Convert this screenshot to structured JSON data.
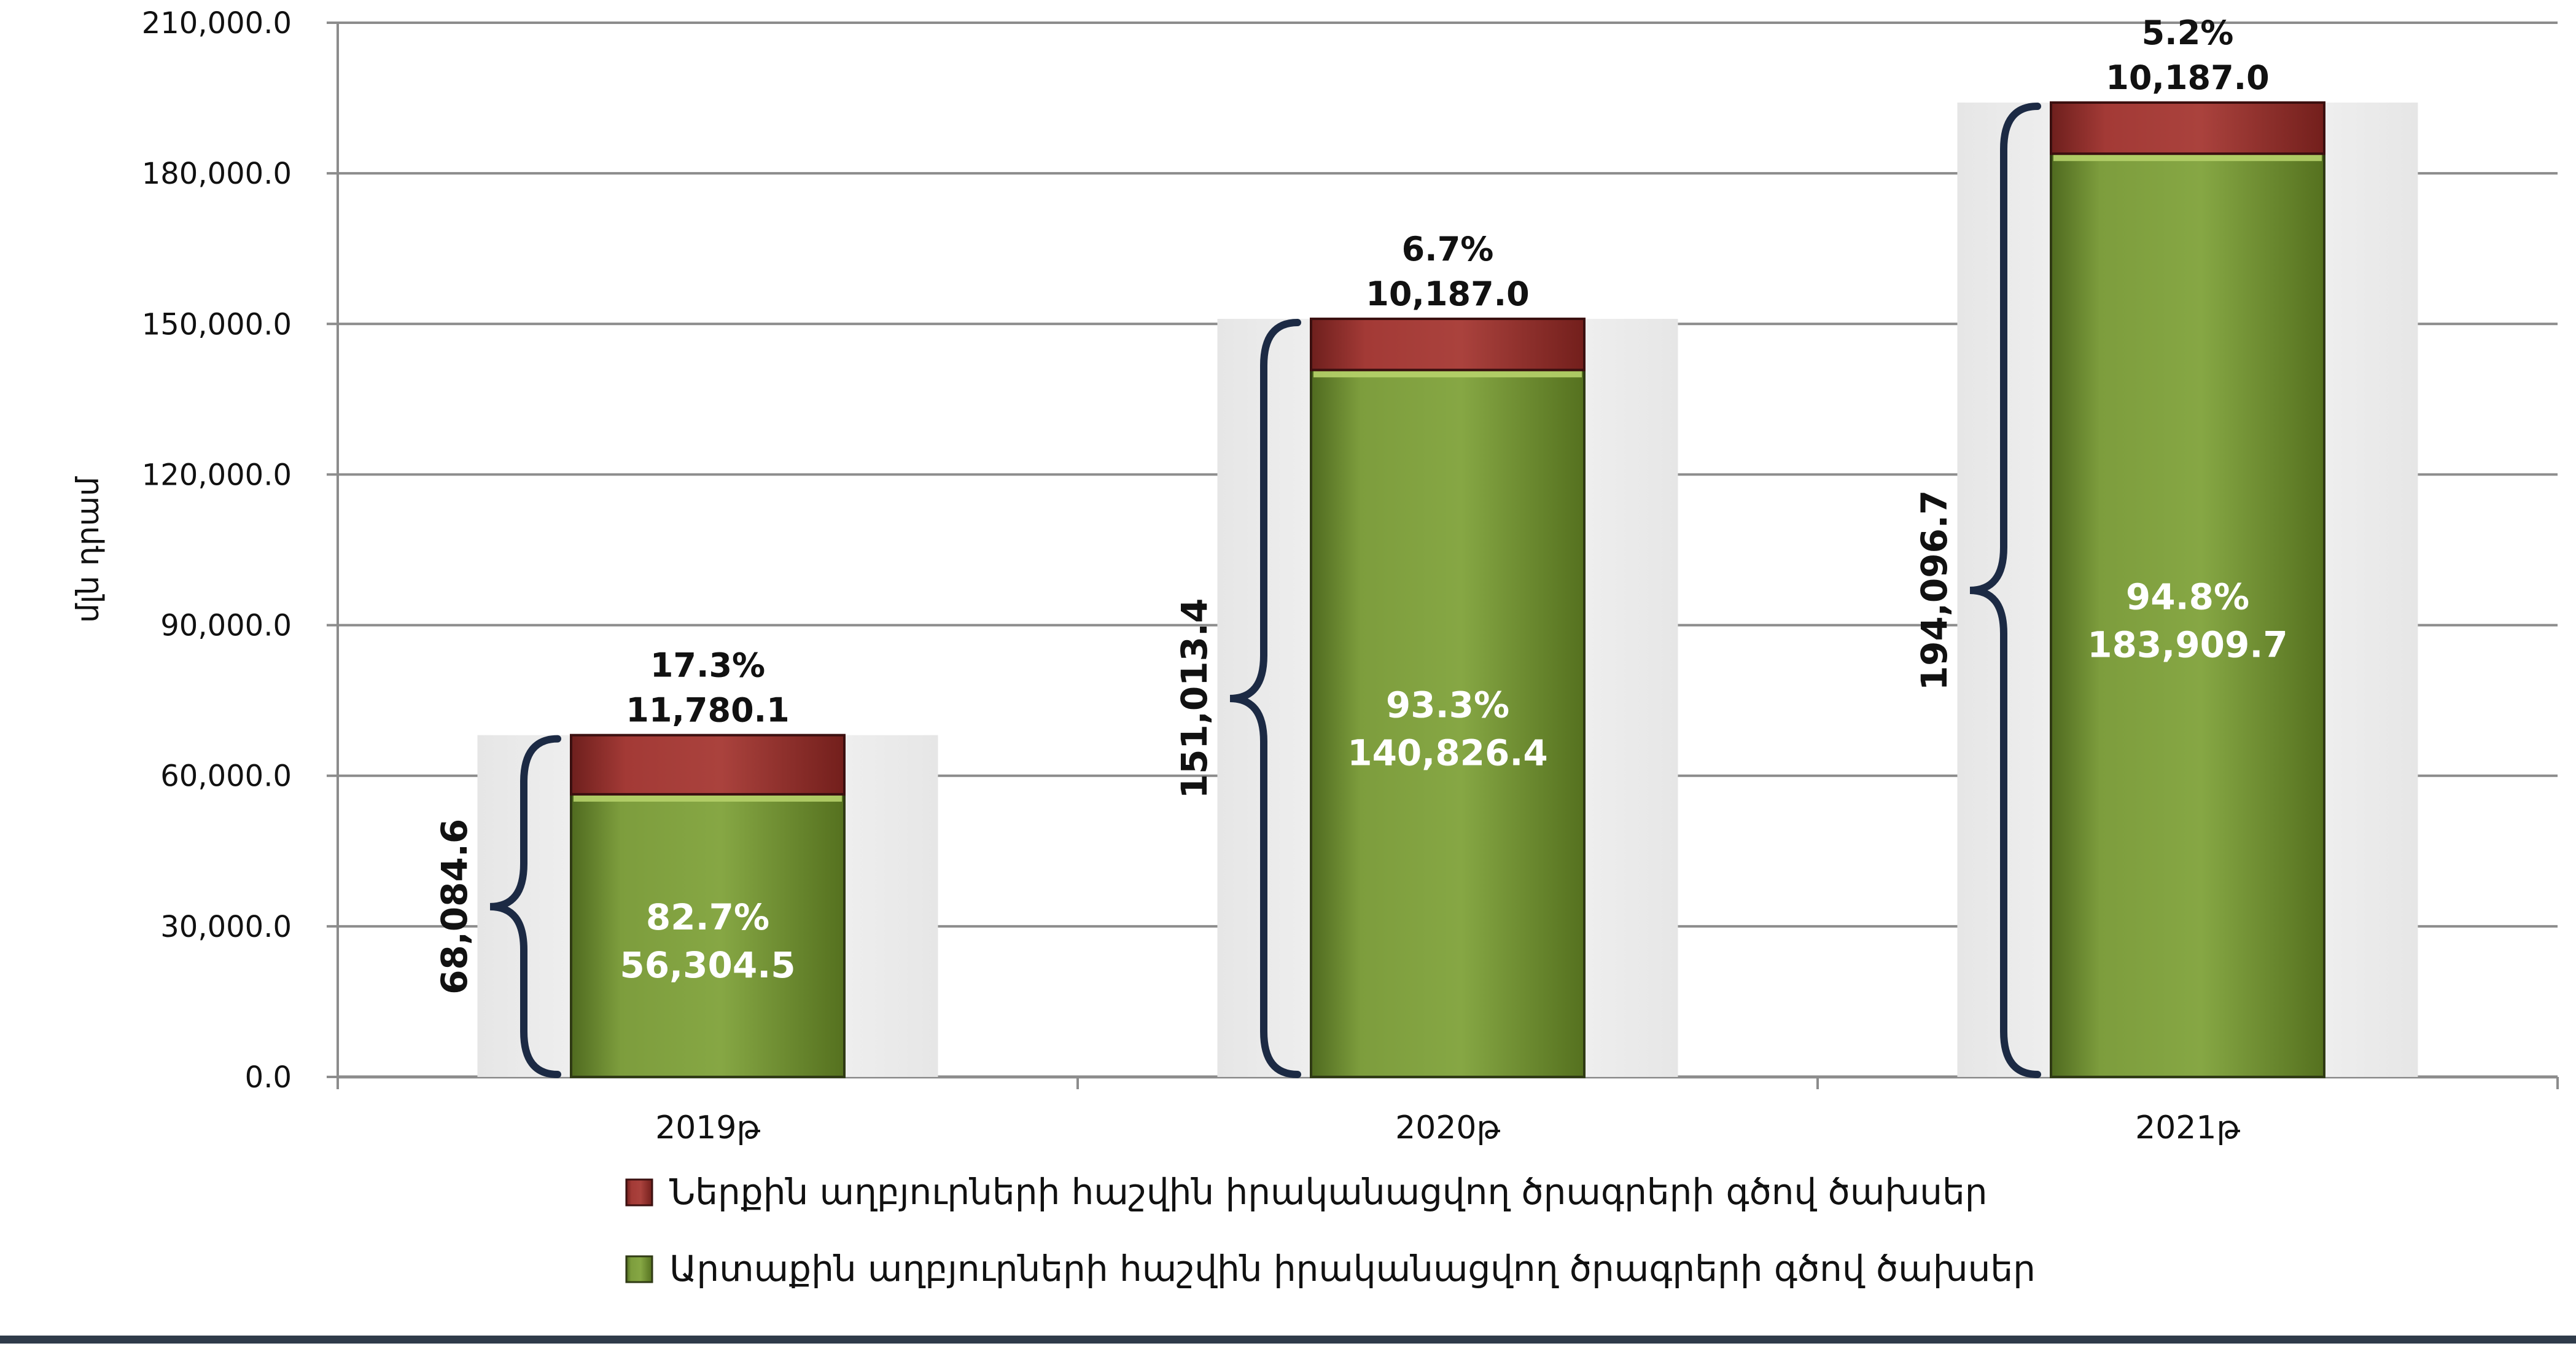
{
  "chart_data": {
    "type": "bar",
    "stacked": true,
    "ylabel": "մլն դրամ",
    "xlabel": "",
    "ylim": [
      0,
      210000
    ],
    "yticks": [
      "0.0",
      "30,000.0",
      "60,000.0",
      "90,000.0",
      "120,000.0",
      "150,000.0",
      "180,000.0",
      "210,000.0"
    ],
    "ytick_values": [
      0,
      30000,
      60000,
      90000,
      120000,
      150000,
      180000,
      210000
    ],
    "grid": true,
    "legend_position": "bottom",
    "categories": [
      "2019թ",
      "2020թ",
      "2021թ"
    ],
    "series": [
      {
        "name": "Արտաքին աղբյուրների հաշվին իրականացվող ծրագրերի գծով ծախսեր",
        "color": "#7a9a3a",
        "values": [
          56304.5,
          140826.4,
          183909.7
        ],
        "labels": [
          "56,304.5",
          "140,826.4",
          "183,909.7"
        ],
        "percents": [
          "82.7%",
          "93.3%",
          "94.8%"
        ]
      },
      {
        "name": "Ներքին աղբյուրների հաշվին իրականացվող ծրագրերի գծով ծախսեր",
        "color": "#a33a36",
        "values": [
          11780.1,
          10187.0,
          10187.0
        ],
        "labels": [
          "11,780.1",
          "10,187.0",
          "10,187.0"
        ],
        "percents": [
          "17.3%",
          "6.7%",
          "5.2%"
        ]
      }
    ],
    "totals": [
      68084.6,
      151013.4,
      194096.7
    ],
    "total_labels": [
      "68,084.6",
      "151,013.4",
      "194,096.7"
    ]
  }
}
